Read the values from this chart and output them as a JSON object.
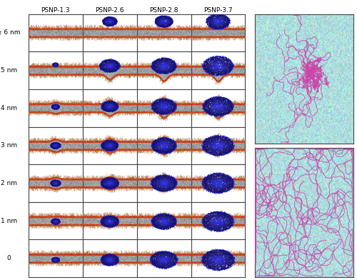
{
  "figure_width": 5.0,
  "figure_height": 3.92,
  "dpi": 100,
  "background_color": "#ffffff",
  "left_panel": {
    "col_labels": [
      "PSNP-1.3",
      "PSNP-2.6",
      "PSNP-2.8",
      "PSNP-3.7"
    ],
    "row_labels": [
      "≥ 6 nm",
      "5 nm",
      "4 nm",
      "3 nm",
      "2 nm",
      "1 nm",
      "0"
    ],
    "n_cols": 4,
    "n_rows": 7,
    "label_fontsize": 6.5,
    "col_label_fontsize": 6.5
  },
  "right_panel": {
    "bg_color": "#b8d8d8",
    "chain_color_top": "#cc44aa",
    "chain_color_bot": "#cc44aa"
  }
}
